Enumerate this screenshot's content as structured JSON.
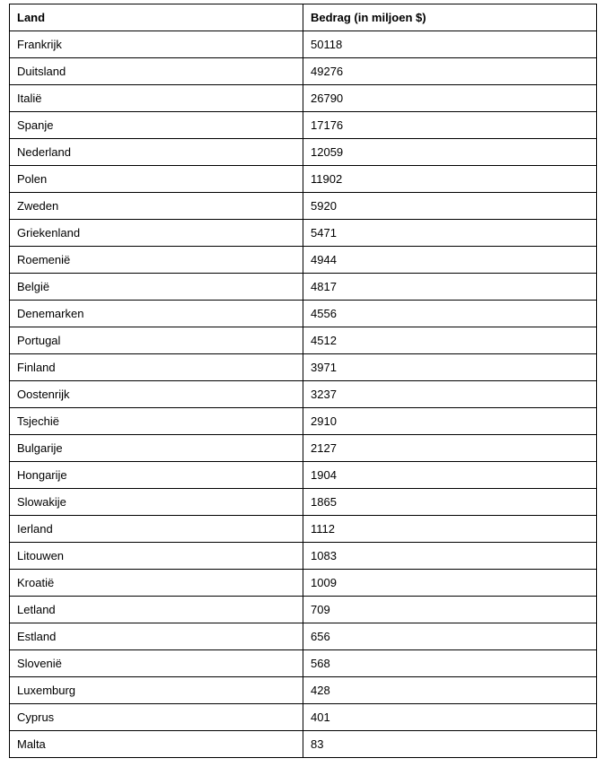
{
  "table": {
    "columns": [
      "Land",
      "Bedrag (in miljoen $)"
    ],
    "column_widths": [
      "50%",
      "50%"
    ],
    "header_fontweight": "bold",
    "cell_fontsize": 13,
    "border_color": "#000000",
    "text_color": "#000000",
    "background_color": "#ffffff",
    "rows": [
      [
        "Frankrijk",
        "50118"
      ],
      [
        "Duitsland",
        "49276"
      ],
      [
        "Italië",
        "26790"
      ],
      [
        "Spanje",
        "17176"
      ],
      [
        "Nederland",
        "12059"
      ],
      [
        "Polen",
        "11902"
      ],
      [
        "Zweden",
        "5920"
      ],
      [
        "Griekenland",
        "5471"
      ],
      [
        "Roemenië",
        "4944"
      ],
      [
        "België",
        "4817"
      ],
      [
        "Denemarken",
        "4556"
      ],
      [
        "Portugal",
        "4512"
      ],
      [
        "Finland",
        "3971"
      ],
      [
        "Oostenrijk",
        "3237"
      ],
      [
        "Tsjechië",
        "2910"
      ],
      [
        "Bulgarije",
        "2127"
      ],
      [
        "Hongarije",
        "1904"
      ],
      [
        "Slowakije",
        "1865"
      ],
      [
        "Ierland",
        "1112"
      ],
      [
        "Litouwen",
        "1083"
      ],
      [
        "Kroatië",
        "1009"
      ],
      [
        "Letland",
        "709"
      ],
      [
        "Estland",
        "656"
      ],
      [
        "Slovenië",
        "568"
      ],
      [
        "Luxemburg",
        "428"
      ],
      [
        "Cyprus",
        "401"
      ],
      [
        "Malta",
        "83"
      ]
    ]
  }
}
